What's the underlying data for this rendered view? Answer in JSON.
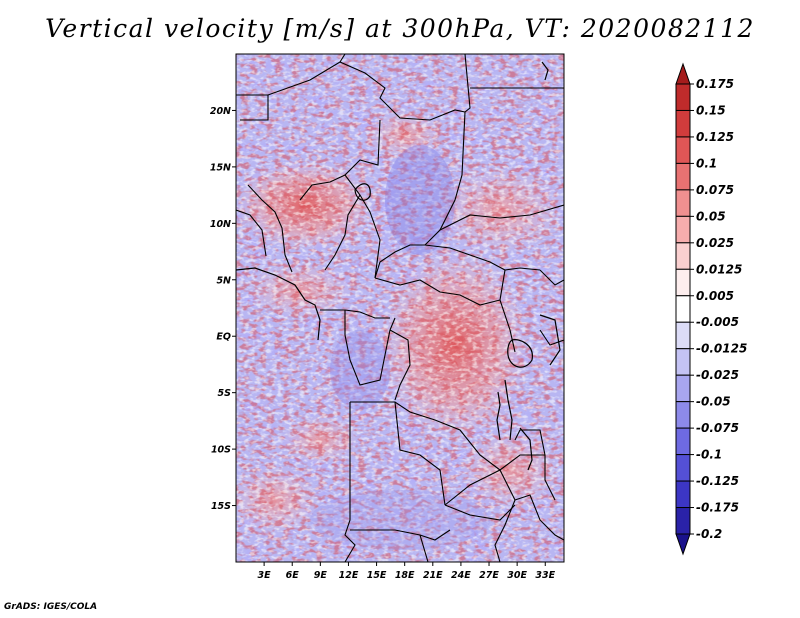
{
  "title": "Vertical velocity [m/s] at 300hPa, VT: 2020082112",
  "credit": "GrADS: IGES/COLA",
  "map": {
    "lon_range": [
      0,
      35
    ],
    "lat_range": [
      -20,
      25
    ],
    "lon_ticks": [
      "3E",
      "6E",
      "9E",
      "12E",
      "15E",
      "18E",
      "21E",
      "24E",
      "27E",
      "30E",
      "33E"
    ],
    "lat_ticks": [
      "20N",
      "15N",
      "10N",
      "5N",
      "EQ",
      "5S",
      "10S",
      "15S"
    ]
  },
  "colorbar": {
    "labels": [
      "0.175",
      "0.15",
      "0.125",
      "0.1",
      "0.075",
      "0.05",
      "0.025",
      "0.0125",
      "0.005",
      "-0.005",
      "-0.0125",
      "-0.025",
      "-0.05",
      "-0.075",
      "-0.1",
      "-0.125",
      "-0.175",
      "-0.2"
    ],
    "colors": [
      "#a51c1c",
      "#bf2b2b",
      "#d13c3c",
      "#df5656",
      "#e87272",
      "#f09090",
      "#f6adad",
      "#fad0d0",
      "#fdeeee",
      "#ffffff",
      "#dcdcf7",
      "#c4c3f4",
      "#a8a6ef",
      "#8d8aea",
      "#6e6ae2",
      "#5450d6",
      "#3c36c5",
      "#2a22a8",
      "#1a128c"
    ]
  }
}
